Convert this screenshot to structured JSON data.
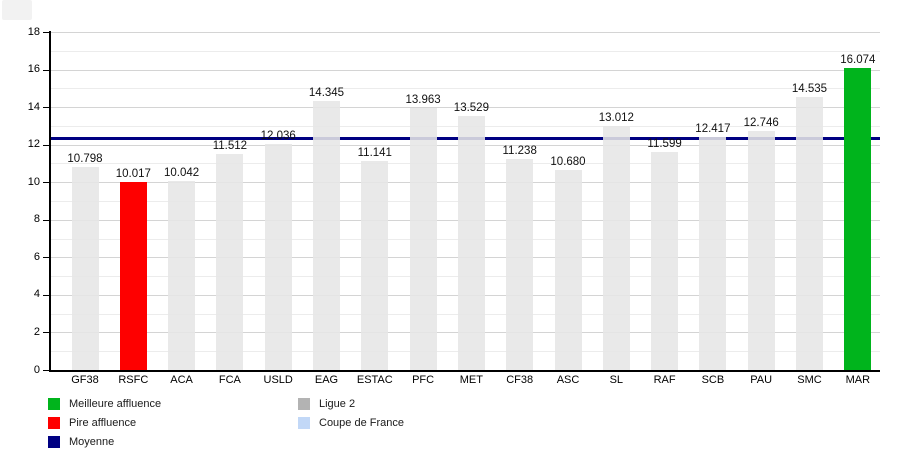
{
  "chart_data": {
    "type": "bar",
    "title": "",
    "xlabel": "",
    "ylabel": "",
    "categories": [
      "GF38",
      "RSFC",
      "ACA",
      "FCA",
      "USLD",
      "EAG",
      "ESTAC",
      "PFC",
      "MET",
      "CF38",
      "ASC",
      "SL",
      "RAF",
      "SCB",
      "PAU",
      "SMC",
      "MAR"
    ],
    "values": [
      10.798,
      10.017,
      10.042,
      11.512,
      12.036,
      14.345,
      11.141,
      13.963,
      13.529,
      11.238,
      10.68,
      13.012,
      11.599,
      12.417,
      12.746,
      14.535,
      16.074
    ],
    "value_labels": [
      "10.798",
      "10.017",
      "10.042",
      "11.512",
      "12.036",
      "14.345",
      "11.141",
      "13.963",
      "13.529",
      "11.238",
      "10.680",
      "13.012",
      "11.599",
      "12.417",
      "12.746",
      "14.535",
      "16.074"
    ],
    "ylim": [
      0,
      18
    ],
    "ytick_step": 2,
    "yticks": [
      0,
      2,
      4,
      6,
      8,
      10,
      12,
      14,
      16,
      18
    ],
    "grid": true,
    "legend_position": "bottom",
    "average_line": {
      "label": "Moyenne",
      "value": 12.33,
      "color": "#000082"
    },
    "best_bar": {
      "category": "MAR",
      "index": 16,
      "value": 16.074,
      "label": "Meilleure affluence",
      "color": "#00b41c"
    },
    "worst_bar": {
      "category": "RSFC",
      "index": 1,
      "value": 10.017,
      "label": "Pire affluence",
      "color": "#fe0000"
    },
    "default_bar": {
      "label": "Ligue 2",
      "color": "#e6e6e6"
    }
  },
  "legend": {
    "columns": [
      [
        {
          "label": "Meilleure affluence",
          "color": "#00b41c"
        },
        {
          "label": "Pire affluence",
          "color": "#fe0000"
        },
        {
          "label": "Moyenne",
          "color": "#000082"
        }
      ],
      [
        {
          "label": "Ligue 2",
          "color": "#b3b3b3"
        },
        {
          "label": "Coupe de France",
          "color": "#c2d8f7"
        }
      ]
    ]
  },
  "colors": {
    "background": "#ffffff",
    "grid_major": "#d4d4d4",
    "grid_minor": "#ececec",
    "axis": "#000000",
    "bar_default": "#e6e6e6",
    "bar_best": "#00b41c",
    "bar_worst": "#fe0000",
    "average_line": "#000082"
  }
}
